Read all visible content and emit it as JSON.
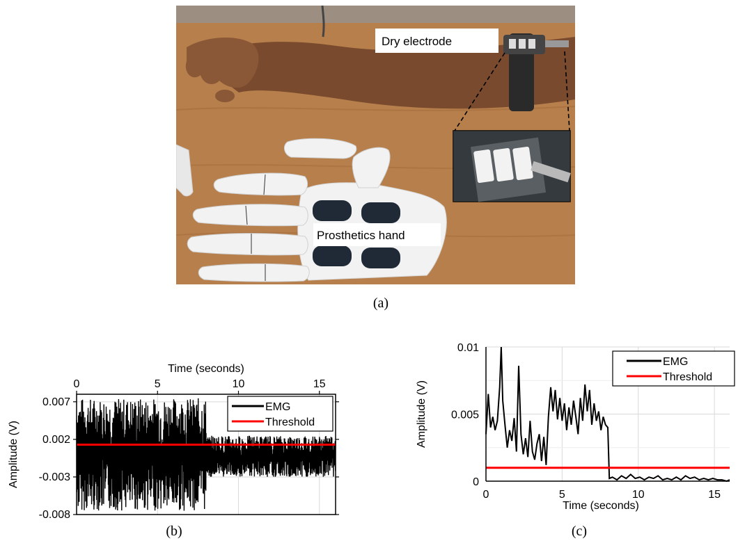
{
  "figure": {
    "photo": {
      "labels": {
        "dry_electrode": "Dry electrode",
        "prosthetics_hand": "Prosthetics hand"
      }
    },
    "captions": {
      "a": "(a)",
      "b": "(b)",
      "c": "(c)"
    }
  },
  "colors": {
    "emg": "#000000",
    "threshold": "#ff0000",
    "wood": "#b77d47",
    "skin": "#8b5a3a"
  },
  "chart_data": [
    {
      "type": "line",
      "xlabel": "Time  (seconds)",
      "ylabel": "Amplitude  (V)",
      "x_axis_position": "top",
      "xlim": [
        0,
        16
      ],
      "ylim": [
        -0.008,
        0.008
      ],
      "xticks": [
        0,
        5,
        10,
        15
      ],
      "xtick_labels": [
        "0",
        "5",
        "10",
        "15"
      ],
      "yticks": [
        0.007,
        0.002,
        -0.003,
        -0.008
      ],
      "ytick_labels": [
        "0.007",
        "0.002",
        "-0.003",
        "-0.008"
      ],
      "grid": true,
      "legend": "top-right",
      "series": [
        {
          "name": "EMG",
          "color": "#000000",
          "segments": [
            {
              "x_start": 0,
              "x_end": 8,
              "y_min": -0.0075,
              "y_max": 0.0075
            },
            {
              "x_start": 8,
              "x_end": 16,
              "y_min": -0.003,
              "y_max": 0.0025
            }
          ]
        },
        {
          "name": "Threshold",
          "color": "#ff0000",
          "x": [
            0,
            16
          ],
          "y": [
            0.0013,
            0.0013
          ]
        }
      ]
    },
    {
      "type": "line",
      "xlabel": "Time  (seconds)",
      "ylabel": "Amplitude  (V)",
      "x_axis_position": "bottom",
      "xlim": [
        0,
        16
      ],
      "ylim": [
        0,
        0.01
      ],
      "xticks": [
        0,
        5,
        10,
        15
      ],
      "xtick_labels": [
        "0",
        "5",
        "10",
        "15"
      ],
      "yticks": [
        0.01,
        0.005,
        0
      ],
      "ytick_labels": [
        "0.01",
        "0.005",
        "0"
      ],
      "grid": true,
      "legend": "top-right",
      "series": [
        {
          "name": "EMG",
          "color": "#000000",
          "x": [
            0,
            0.15,
            0.3,
            0.45,
            0.6,
            0.75,
            0.9,
            1.0,
            1.1,
            1.25,
            1.4,
            1.55,
            1.7,
            1.85,
            2.0,
            2.15,
            2.3,
            2.45,
            2.6,
            2.75,
            2.9,
            3.05,
            3.2,
            3.35,
            3.5,
            3.65,
            3.8,
            3.95,
            4.1,
            4.25,
            4.4,
            4.55,
            4.7,
            4.85,
            5.0,
            5.15,
            5.3,
            5.45,
            5.6,
            5.75,
            5.9,
            6.05,
            6.2,
            6.35,
            6.5,
            6.65,
            6.8,
            6.95,
            7.1,
            7.25,
            7.4,
            7.55,
            7.7,
            7.85,
            8.0,
            8.1,
            8.3,
            8.6,
            8.9,
            9.2,
            9.5,
            9.8,
            10.1,
            10.4,
            10.7,
            11.0,
            11.3,
            11.6,
            11.9,
            12.2,
            12.5,
            12.8,
            13.1,
            13.4,
            13.7,
            14.0,
            14.3,
            14.6,
            14.9,
            15.2,
            15.5,
            15.8,
            16.0
          ],
          "y": [
            0.0035,
            0.0065,
            0.004,
            0.0048,
            0.0038,
            0.0045,
            0.007,
            0.01,
            0.006,
            0.0042,
            0.0025,
            0.0038,
            0.003,
            0.0047,
            0.0022,
            0.0086,
            0.0035,
            0.002,
            0.0032,
            0.0018,
            0.0045,
            0.0022,
            0.0016,
            0.0028,
            0.0035,
            0.0015,
            0.0033,
            0.0012,
            0.0048,
            0.007,
            0.0052,
            0.0068,
            0.0046,
            0.0062,
            0.0045,
            0.0058,
            0.0038,
            0.0055,
            0.0042,
            0.006,
            0.0048,
            0.0035,
            0.0062,
            0.0045,
            0.0072,
            0.0052,
            0.0068,
            0.0042,
            0.0058,
            0.0045,
            0.0052,
            0.0038,
            0.0048,
            0.0042,
            0.004,
            0.0002,
            0.0003,
            0.0001,
            0.0004,
            0.0002,
            0.0005,
            0.0002,
            0.0003,
            0.0001,
            0.0003,
            0.0002,
            0.0004,
            0.0001,
            0.0002,
            0.0001,
            0.0003,
            0.0001,
            0.0004,
            0.0002,
            0.0003,
            0.0001,
            0.0002,
            0.0001,
            0.0002,
            0.0001,
            0.0001,
            0.0,
            0.0001
          ]
        },
        {
          "name": "Threshold",
          "color": "#ff0000",
          "x": [
            0,
            16
          ],
          "y": [
            0.001,
            0.001
          ]
        }
      ]
    }
  ]
}
